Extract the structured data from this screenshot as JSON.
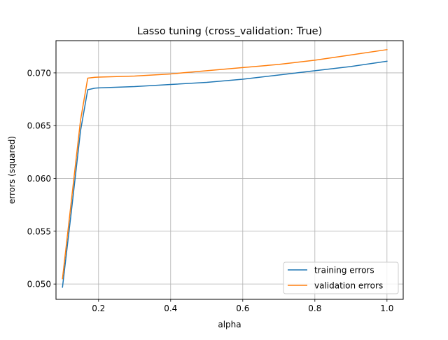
{
  "chart_data": {
    "type": "line",
    "title": "Lasso tuning (cross_validation: True)",
    "xlabel": "alpha",
    "ylabel": "errors (squared)",
    "xlim": [
      0.082,
      1.045
    ],
    "ylim": [
      0.04855,
      0.07305
    ],
    "xticks": [
      0.2,
      0.4,
      0.6,
      0.8,
      1.0
    ],
    "xtick_labels": [
      "0.2",
      "0.4",
      "0.6",
      "0.8",
      "1.0"
    ],
    "yticks": [
      0.05,
      0.055,
      0.06,
      0.065,
      0.07
    ],
    "ytick_labels": [
      "0.050",
      "0.055",
      "0.060",
      "0.065",
      "0.070"
    ],
    "grid": true,
    "legend_position": "lower-right",
    "series": [
      {
        "name": "training errors",
        "color": "#1f77b4",
        "x": [
          0.1,
          0.125,
          0.15,
          0.17,
          0.19,
          0.2,
          0.3,
          0.4,
          0.5,
          0.6,
          0.7,
          0.8,
          0.9,
          1.0
        ],
        "y": [
          0.0497,
          0.057,
          0.0645,
          0.0684,
          0.06855,
          0.06858,
          0.0687,
          0.0689,
          0.0691,
          0.0694,
          0.0698,
          0.0702,
          0.0706,
          0.0711
        ]
      },
      {
        "name": "validation errors",
        "color": "#ff7f0e",
        "x": [
          0.1,
          0.125,
          0.15,
          0.17,
          0.19,
          0.2,
          0.3,
          0.4,
          0.5,
          0.6,
          0.7,
          0.8,
          0.9,
          1.0
        ],
        "y": [
          0.0505,
          0.058,
          0.0655,
          0.0695,
          0.06958,
          0.0696,
          0.0697,
          0.0699,
          0.0702,
          0.0705,
          0.0708,
          0.0712,
          0.0717,
          0.0722
        ]
      }
    ]
  }
}
